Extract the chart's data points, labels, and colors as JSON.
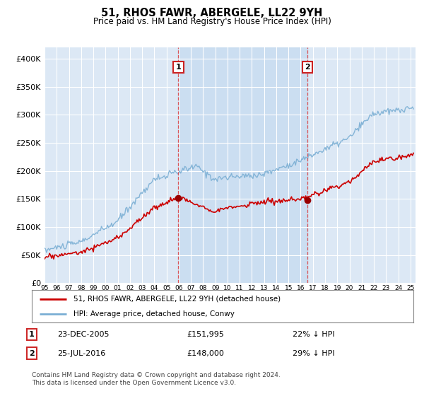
{
  "title": "51, RHOS FAWR, ABERGELE, LL22 9YH",
  "subtitle": "Price paid vs. HM Land Registry's House Price Index (HPI)",
  "ylabel_ticks": [
    "£0",
    "£50K",
    "£100K",
    "£150K",
    "£200K",
    "£250K",
    "£300K",
    "£350K",
    "£400K"
  ],
  "ytick_values": [
    0,
    50000,
    100000,
    150000,
    200000,
    250000,
    300000,
    350000,
    400000
  ],
  "ylim": [
    0,
    420000
  ],
  "line1_color": "#cc0000",
  "line2_color": "#7bafd4",
  "vline1_date": "2005-12-23",
  "vline2_date": "2016-07-25",
  "marker1_value1": 151995,
  "marker1_value2": 148000,
  "legend_label1": "51, RHOS FAWR, ABERGELE, LL22 9YH (detached house)",
  "legend_label2": "HPI: Average price, detached house, Conwy",
  "annotation1_date": "23-DEC-2005",
  "annotation1_price": "£151,995",
  "annotation1_hpi": "22% ↓ HPI",
  "annotation2_date": "25-JUL-2016",
  "annotation2_price": "£148,000",
  "annotation2_hpi": "29% ↓ HPI",
  "footer": "Contains HM Land Registry data © Crown copyright and database right 2024.\nThis data is licensed under the Open Government Licence v3.0.",
  "bg_color": "#ffffff",
  "plot_bg_color": "#dce8f5",
  "shade_color": "#c5dbf0"
}
